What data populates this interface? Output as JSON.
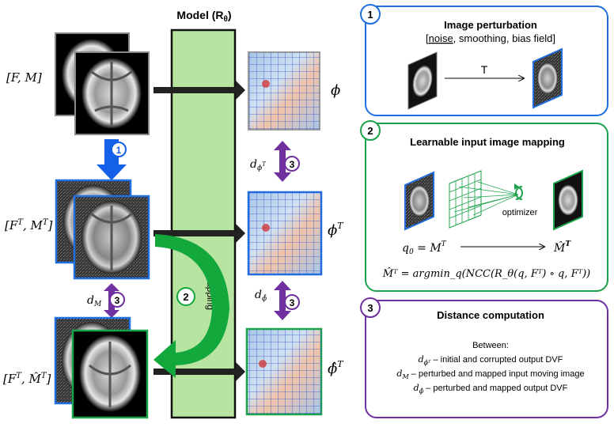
{
  "model": {
    "title": "Model (R",
    "title_sub": "θ",
    "title_close": ")",
    "mapping_label": "mapping"
  },
  "left_labels": {
    "row1": "[F, M]",
    "row2": "[F",
    "row2_sup1": "T",
    "row2_mid": ", M",
    "row2_sup2": "T",
    "row2_end": "]",
    "row3": "[F",
    "row3_sup1": "T",
    "row3_mid": ", M̂",
    "row3_sup2": "T",
    "row3_end": "]"
  },
  "right_labels": {
    "phi": "ϕ",
    "phiT": "ϕ",
    "phiT_sup": "T",
    "phihat": "ϕ̂",
    "phihat_sup": "T"
  },
  "distances": {
    "d_phiT": "d",
    "d_phiT_sub": "ϕ",
    "d_phiT_subsup": "T",
    "d_M": "d",
    "d_M_sub": "M",
    "d_phihat": "d",
    "d_phihat_sub": "ϕ̂"
  },
  "badges": {
    "one": "1",
    "two": "2",
    "three": "3"
  },
  "panel1": {
    "number": "1",
    "title": "Image perturbation",
    "subtitle_open": "[",
    "subtitle_noise": "noise",
    "subtitle_rest": ", smoothing, bias field]",
    "arrow_label": "T"
  },
  "panel2": {
    "number": "2",
    "title": "Learnable input image mapping",
    "optimizer": "optimizer",
    "eq_left": "q",
    "eq_left_sub": "0",
    "eq_mid": " = M",
    "eq_mid_sup": "T",
    "eq_right": "M̂",
    "eq_right_sup": "T",
    "formula": "M̂ᵀ = argmin_q(NCC(R_θ(q, Fᵀ) ∘ q, Fᵀ))"
  },
  "panel3": {
    "number": "3",
    "title": "Distance computation",
    "between": "Between:",
    "line1_sym": "d",
    "line1_sub": "ϕᵀ",
    "line1_text": "– initial and corrupted output DVF",
    "line2_sym": "d",
    "line2_sub": "M",
    "line2_text": "– perturbed and mapped input moving image",
    "line3_sym": "d",
    "line3_sub": "ϕ̂",
    "line3_text": "– perturbed and mapped output DVF"
  },
  "colors": {
    "blue": "#1f6fe0",
    "green": "#1aa34a",
    "purple": "#7030a0",
    "model_fill": "#b7e4a0"
  }
}
